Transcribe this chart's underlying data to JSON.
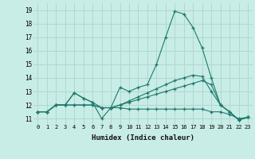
{
  "background_color": "#c8ece6",
  "grid_color": "#b0d8d0",
  "line_color": "#1e7a6e",
  "x_label": "Humidex (Indice chaleur)",
  "x_ticks": [
    0,
    1,
    2,
    3,
    4,
    5,
    6,
    7,
    8,
    9,
    10,
    11,
    12,
    13,
    14,
    15,
    16,
    17,
    18,
    19,
    20,
    21,
    22,
    23
  ],
  "y_ticks": [
    11,
    12,
    13,
    14,
    15,
    16,
    17,
    18,
    19
  ],
  "ylim": [
    10.6,
    19.5
  ],
  "xlim": [
    -0.5,
    23.5
  ],
  "series": [
    {
      "x": [
        0,
        1,
        2,
        3,
        4,
        5,
        6,
        7,
        8,
        9,
        10,
        11,
        12,
        13,
        14,
        15,
        16,
        17,
        18,
        19,
        20,
        21,
        22,
        23
      ],
      "y": [
        11.5,
        11.5,
        12.0,
        12.0,
        12.0,
        12.0,
        12.0,
        11.8,
        11.8,
        11.8,
        11.7,
        11.7,
        11.7,
        11.7,
        11.7,
        11.7,
        11.7,
        11.7,
        11.7,
        11.5,
        11.5,
        11.3,
        11.0,
        11.1
      ]
    },
    {
      "x": [
        0,
        1,
        2,
        3,
        4,
        5,
        6,
        7,
        8,
        9,
        10,
        11,
        12,
        13,
        14,
        15,
        16,
        17,
        18,
        19,
        20,
        21,
        22,
        23
      ],
      "y": [
        11.5,
        11.5,
        12.0,
        12.0,
        12.0,
        12.0,
        12.0,
        11.8,
        11.8,
        12.0,
        12.2,
        12.4,
        12.6,
        12.8,
        13.0,
        13.2,
        13.4,
        13.6,
        13.8,
        13.5,
        12.0,
        11.5,
        10.9,
        11.1
      ]
    },
    {
      "x": [
        0,
        1,
        2,
        3,
        4,
        5,
        6,
        7,
        8,
        9,
        10,
        11,
        12,
        13,
        14,
        15,
        16,
        17,
        18,
        19,
        20,
        21,
        22,
        23
      ],
      "y": [
        11.5,
        11.5,
        12.0,
        12.0,
        12.9,
        12.5,
        12.2,
        11.8,
        11.8,
        12.0,
        12.3,
        12.6,
        12.9,
        13.2,
        13.5,
        13.8,
        14.0,
        14.2,
        14.1,
        13.0,
        12.0,
        11.5,
        10.9,
        11.1
      ]
    },
    {
      "x": [
        0,
        1,
        2,
        3,
        4,
        5,
        6,
        7,
        8,
        9,
        10,
        11,
        12,
        13,
        14,
        15,
        16,
        17,
        18,
        19,
        20,
        21,
        22,
        23
      ],
      "y": [
        11.5,
        11.5,
        12.0,
        12.0,
        12.9,
        12.5,
        12.2,
        11.0,
        11.8,
        13.3,
        13.0,
        13.3,
        13.5,
        15.0,
        17.0,
        18.9,
        18.7,
        17.7,
        16.2,
        14.0,
        12.0,
        11.5,
        10.9,
        11.1
      ]
    }
  ]
}
